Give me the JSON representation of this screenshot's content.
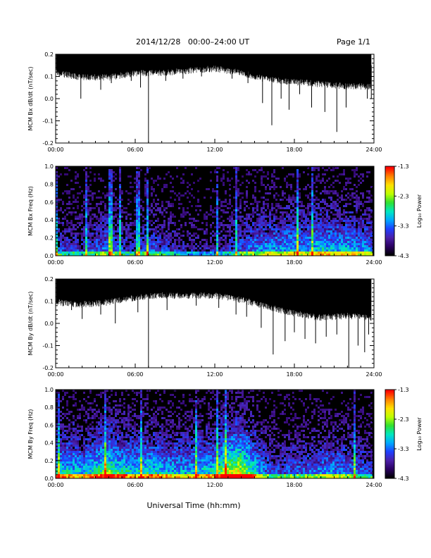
{
  "header": {
    "title": "2014/12/28   00:00–24:00 UT",
    "page": "Page 1/1"
  },
  "x_axis_label": "Universal Time (hh:mm)",
  "colors": {
    "trace": "#000000",
    "background": "#ffffff",
    "colormap": [
      "#000000",
      "#2a0060",
      "#4b1fa8",
      "#1f3fff",
      "#00a8ff",
      "#00e8c0",
      "#30e030",
      "#c0ff00",
      "#ffe000",
      "#ff8000",
      "#ff0000"
    ]
  },
  "chart_data": [
    {
      "type": "line",
      "ylabel": "MCM Bx dB/dt (nT/sec)",
      "xlim": [
        0,
        24
      ],
      "ylim": [
        -0.2,
        0.2
      ],
      "xticks": [
        "00:00",
        "06:00",
        "12:00",
        "18:00",
        "24:00"
      ],
      "yticks": [
        "-0.2",
        "-0.1",
        "0.0",
        "0.1",
        "0.2"
      ],
      "series": [
        {
          "band_x": [
            0,
            2,
            4,
            6,
            8,
            10,
            12,
            14,
            16,
            18,
            20,
            22,
            23.8
          ],
          "band_low": [
            0.13,
            0.11,
            0.11,
            0.13,
            0.13,
            0.14,
            0.15,
            0.13,
            0.1,
            0.09,
            0.08,
            0.07,
            0.07
          ],
          "band_high": [
            0.2,
            0.2,
            0.2,
            0.2,
            0.2,
            0.2,
            0.2,
            0.2,
            0.2,
            0.2,
            0.2,
            0.2,
            0.2
          ],
          "spikes": [
            [
              1.9,
              0.0
            ],
            [
              3.4,
              0.04
            ],
            [
              4.2,
              0.07
            ],
            [
              5.7,
              0.08
            ],
            [
              6.4,
              0.05
            ],
            [
              7.0,
              -0.2
            ],
            [
              8.3,
              0.08
            ],
            [
              9.6,
              0.09
            ],
            [
              11.0,
              0.1
            ],
            [
              13.3,
              0.09
            ],
            [
              14.5,
              0.07
            ],
            [
              15.6,
              -0.02
            ],
            [
              16.3,
              -0.12
            ],
            [
              17.0,
              0.0
            ],
            [
              17.6,
              -0.05
            ],
            [
              18.4,
              0.02
            ],
            [
              19.3,
              -0.04
            ],
            [
              20.3,
              -0.06
            ],
            [
              21.2,
              -0.15
            ],
            [
              21.9,
              -0.04
            ],
            [
              22.6,
              0.05
            ],
            [
              23.5,
              0.0
            ],
            [
              23.8,
              0.0
            ]
          ],
          "tail": [
            [
              23.85,
              0.0
            ],
            [
              24.0,
              0.0
            ]
          ]
        }
      ]
    },
    {
      "type": "heatmap",
      "ylabel": "MCM Bx Freq (Hz)",
      "xlim": [
        0,
        24
      ],
      "ylim": [
        0.0,
        1.0
      ],
      "xticks": [
        "00:00",
        "06:00",
        "12:00",
        "18:00",
        "24:00"
      ],
      "yticks": [
        "0.0",
        "0.2",
        "0.4",
        "0.6",
        "0.8",
        "1.0"
      ],
      "colorbar": {
        "label": "Log₁₀ Power",
        "range": [
          -4.3,
          -1.3
        ],
        "ticks": [
          "-1.3",
          "-2.3",
          "-3.3",
          "-4.3"
        ]
      },
      "activity": {
        "hours": [
          0,
          1,
          2,
          3,
          4,
          5,
          6,
          7,
          8,
          9,
          10,
          11,
          12,
          13,
          14,
          15,
          16,
          17,
          18,
          19,
          20,
          21,
          22,
          23,
          24
        ],
        "level": [
          0.3,
          0.3,
          0.25,
          0.35,
          0.4,
          0.3,
          0.25,
          0.35,
          0.3,
          0.25,
          0.2,
          0.2,
          0.2,
          0.25,
          0.35,
          0.4,
          0.45,
          0.45,
          0.5,
          0.45,
          0.55,
          0.5,
          0.5,
          0.45,
          0.4
        ]
      }
    },
    {
      "type": "line",
      "ylabel": "MCM By dB/dt (nT/sec)",
      "xlim": [
        0,
        24
      ],
      "ylim": [
        -0.2,
        0.2
      ],
      "xticks": [
        "00:00",
        "06:00",
        "12:00",
        "18:00",
        "24:00"
      ],
      "yticks": [
        "-0.2",
        "-0.1",
        "0.0",
        "0.1",
        "0.2"
      ],
      "series": [
        {
          "band_x": [
            0,
            2,
            4,
            6,
            8,
            10,
            12,
            14,
            16,
            18,
            20,
            22,
            23.8
          ],
          "band_low": [
            0.11,
            0.1,
            0.11,
            0.13,
            0.14,
            0.14,
            0.14,
            0.12,
            0.09,
            0.06,
            0.04,
            0.05,
            0.04
          ],
          "band_high": [
            0.2,
            0.2,
            0.2,
            0.2,
            0.2,
            0.2,
            0.2,
            0.2,
            0.2,
            0.2,
            0.2,
            0.2,
            0.2
          ],
          "spikes": [
            [
              0.6,
              0.08
            ],
            [
              1.2,
              0.06
            ],
            [
              2.0,
              0.02
            ],
            [
              3.4,
              0.04
            ],
            [
              4.5,
              0.0
            ],
            [
              6.2,
              0.05
            ],
            [
              7.0,
              -0.2
            ],
            [
              8.4,
              0.06
            ],
            [
              10.6,
              0.08
            ],
            [
              12.3,
              0.07
            ],
            [
              13.6,
              0.04
            ],
            [
              14.4,
              0.03
            ],
            [
              15.5,
              -0.02
            ],
            [
              16.4,
              -0.14
            ],
            [
              17.3,
              -0.08
            ],
            [
              18.0,
              -0.04
            ],
            [
              18.8,
              -0.07
            ],
            [
              19.6,
              -0.09
            ],
            [
              20.4,
              -0.06
            ],
            [
              21.2,
              -0.05
            ],
            [
              22.1,
              -0.2
            ],
            [
              22.8,
              -0.1
            ],
            [
              23.3,
              -0.13
            ],
            [
              23.6,
              -0.05
            ]
          ],
          "tail": []
        }
      ]
    },
    {
      "type": "heatmap",
      "ylabel": "MCM By Freq (Hz)",
      "xlim": [
        0,
        24
      ],
      "ylim": [
        0.0,
        1.0
      ],
      "xticks": [
        "00:00",
        "06:00",
        "12:00",
        "18:00",
        "24:00"
      ],
      "yticks": [
        "0.0",
        "0.2",
        "0.4",
        "0.6",
        "0.8",
        "1.0"
      ],
      "colorbar": {
        "label": "Log₁₀ Power",
        "range": [
          -4.3,
          -1.3
        ],
        "ticks": [
          "-1.3",
          "-2.3",
          "-3.3",
          "-4.3"
        ]
      },
      "activity": {
        "hours": [
          0,
          1,
          2,
          3,
          4,
          5,
          6,
          7,
          8,
          9,
          10,
          11,
          12,
          13,
          14,
          15,
          16,
          17,
          18,
          19,
          20,
          21,
          22,
          23,
          24
        ],
        "level": [
          0.55,
          0.55,
          0.5,
          0.6,
          0.75,
          0.6,
          0.55,
          0.6,
          0.55,
          0.5,
          0.5,
          0.55,
          0.55,
          0.85,
          0.9,
          0.6,
          0.35,
          0.3,
          0.35,
          0.35,
          0.4,
          0.45,
          0.4,
          0.35,
          0.3
        ]
      }
    }
  ]
}
